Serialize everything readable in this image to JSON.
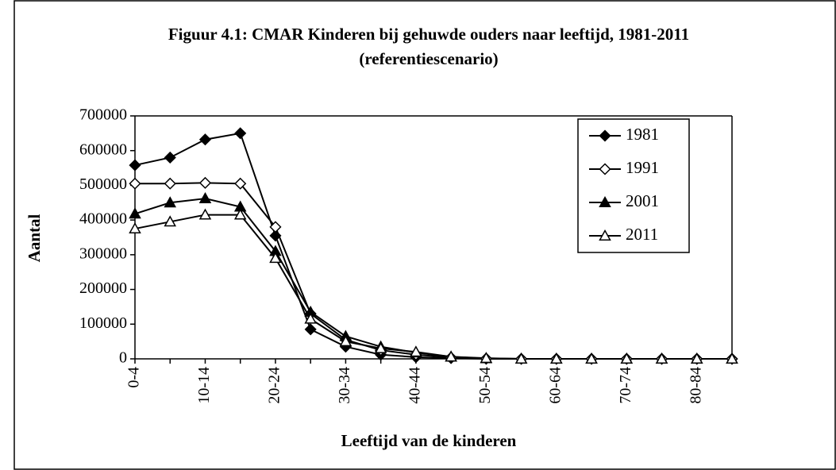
{
  "chart_data": {
    "type": "line",
    "title": "Figuur 4.1: CMAR Kinderen bij gehuwde ouders naar leeftijd, 1981-2011",
    "subtitle": "(referentiescenario)",
    "x_label": "Leeftijd van de kinderen",
    "y_label": "Aantal",
    "categories": [
      "0-4",
      null,
      "10-14",
      null,
      "20-24",
      null,
      "30-34",
      null,
      "40-44",
      null,
      "50-54",
      null,
      "60-64",
      null,
      "70-74",
      null,
      "80-84",
      null
    ],
    "ylim": [
      0,
      700000
    ],
    "yticks": [
      0,
      100000,
      200000,
      300000,
      400000,
      500000,
      600000,
      700000
    ],
    "grid": false,
    "legend": "upper right",
    "series": [
      {
        "name": "1981",
        "color": "#000000",
        "marker": "diamond",
        "filled": true,
        "values": [
          558000,
          580000,
          632000,
          650000,
          355000,
          85000,
          35000,
          12000,
          5000,
          2000,
          0,
          0,
          0,
          0,
          0,
          0,
          0,
          0
        ]
      },
      {
        "name": "1991",
        "color": "#000000",
        "marker": "diamond",
        "filled": false,
        "values": [
          505000,
          505000,
          507000,
          505000,
          380000,
          130000,
          55000,
          25000,
          12000,
          4000,
          1000,
          0,
          0,
          0,
          0,
          0,
          0,
          0
        ]
      },
      {
        "name": "2001",
        "color": "#000000",
        "marker": "triangle",
        "filled": true,
        "values": [
          418000,
          450000,
          462000,
          438000,
          310000,
          135000,
          65000,
          35000,
          18000,
          6000,
          1000,
          0,
          0,
          0,
          0,
          0,
          0,
          0
        ]
      },
      {
        "name": "2011",
        "color": "#000000",
        "marker": "triangle",
        "filled": false,
        "values": [
          375000,
          395000,
          415000,
          415000,
          290000,
          115000,
          50000,
          30000,
          20000,
          6000,
          2000,
          0,
          0,
          0,
          0,
          0,
          0,
          0
        ]
      }
    ]
  }
}
